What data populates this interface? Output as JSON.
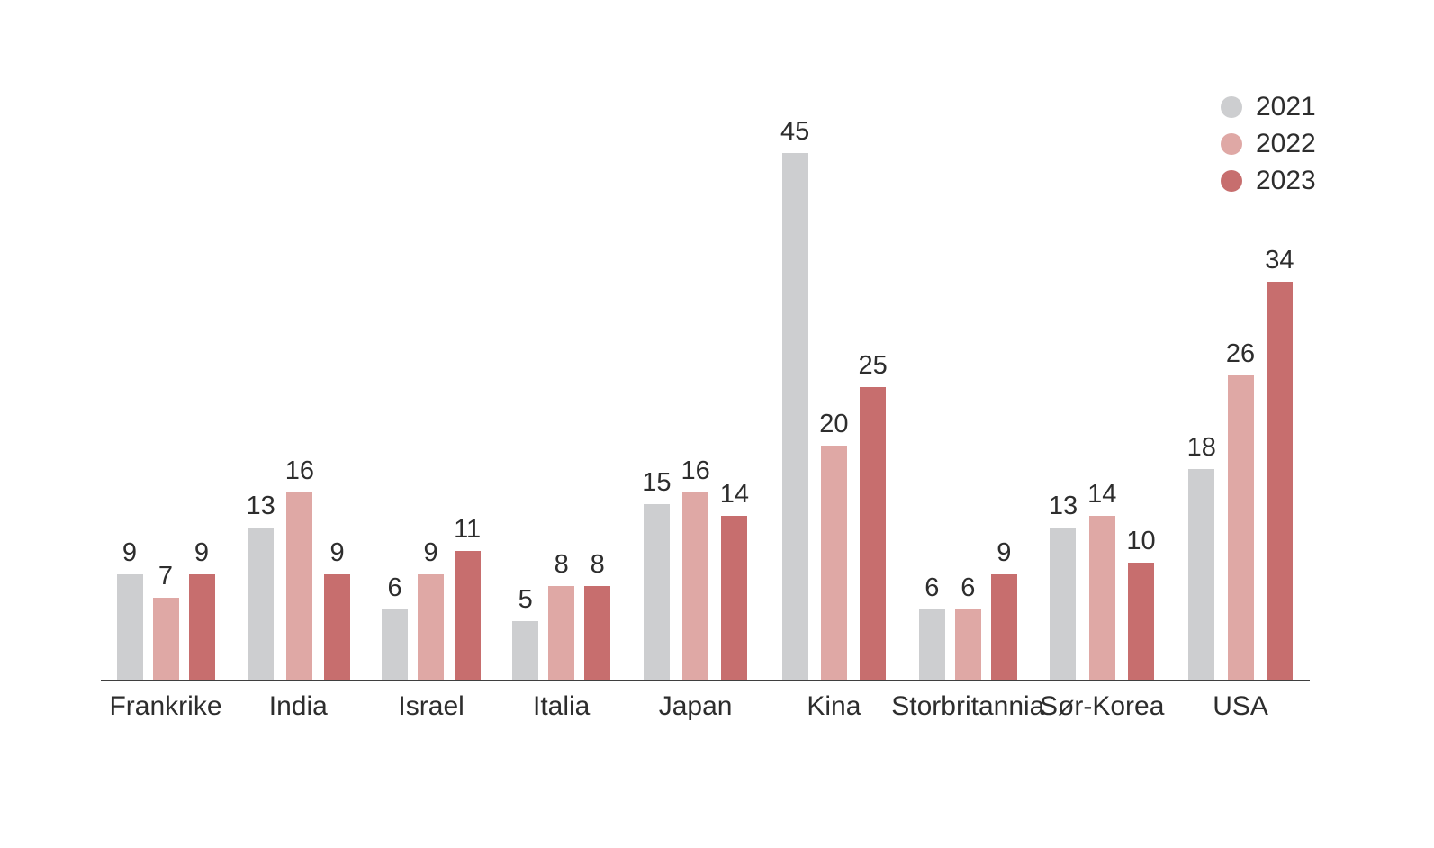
{
  "chart_data": {
    "type": "bar",
    "subtype": "grouped-vertical",
    "title": "",
    "xlabel": "",
    "ylabel": "",
    "grid": false,
    "y_axis_visible": false,
    "value_labels_visible": true,
    "legend_position": "top-right",
    "categories": [
      "Frankrike",
      "India",
      "Israel",
      "Italia",
      "Japan",
      "Kina",
      "Storbritannia",
      "Sør-Korea",
      "USA"
    ],
    "series": [
      {
        "name": "2021",
        "color": "#cdced0",
        "values": [
          9,
          13,
          6,
          5,
          15,
          45,
          6,
          13,
          18
        ]
      },
      {
        "name": "2022",
        "color": "#dfa8a5",
        "values": [
          7,
          16,
          9,
          8,
          16,
          20,
          6,
          14,
          26
        ]
      },
      {
        "name": "2023",
        "color": "#c76e6e",
        "values": [
          9,
          9,
          11,
          8,
          14,
          25,
          9,
          10,
          34
        ]
      }
    ],
    "ylim": [
      0,
      58
    ]
  },
  "colors": {
    "background": "#ffffff",
    "axis_line": "#3f3f3f",
    "text": "#2d2d2d"
  }
}
